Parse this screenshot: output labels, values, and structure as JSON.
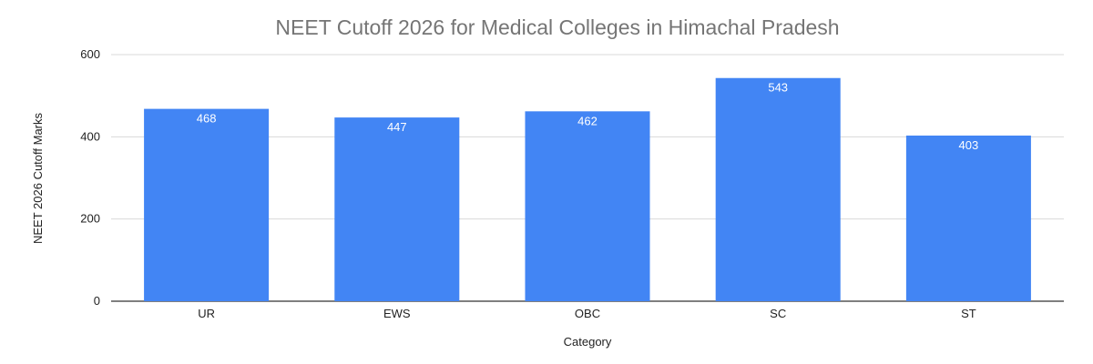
{
  "colors": {
    "bar": "#4285f4",
    "grid": "#d9d9d9",
    "title": "#757575",
    "label": "#ffffff"
  },
  "chart_data": {
    "type": "bar",
    "title": "NEET Cutoff 2026 for Medical Colleges in Himachal Pradesh",
    "xlabel": "Category",
    "ylabel": "NEET 2026 Cutoff Marks",
    "categories": [
      "UR",
      "EWS",
      "OBC",
      "SC",
      "ST"
    ],
    "values": [
      468,
      447,
      462,
      543,
      403
    ],
    "ylim": [
      0,
      600
    ],
    "yticks": [
      0,
      200,
      400,
      600
    ],
    "grid": true,
    "legend": "none"
  }
}
